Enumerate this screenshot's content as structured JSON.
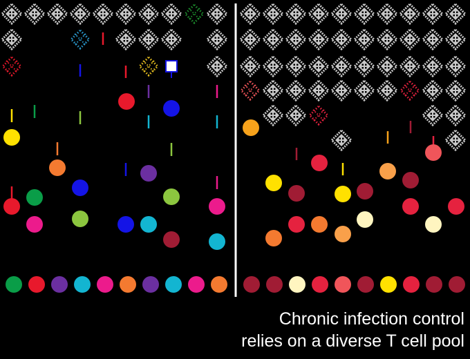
{
  "caption": {
    "line1": "Chronic infection control",
    "line2": "relies on a diverse T cell pool"
  }
}
